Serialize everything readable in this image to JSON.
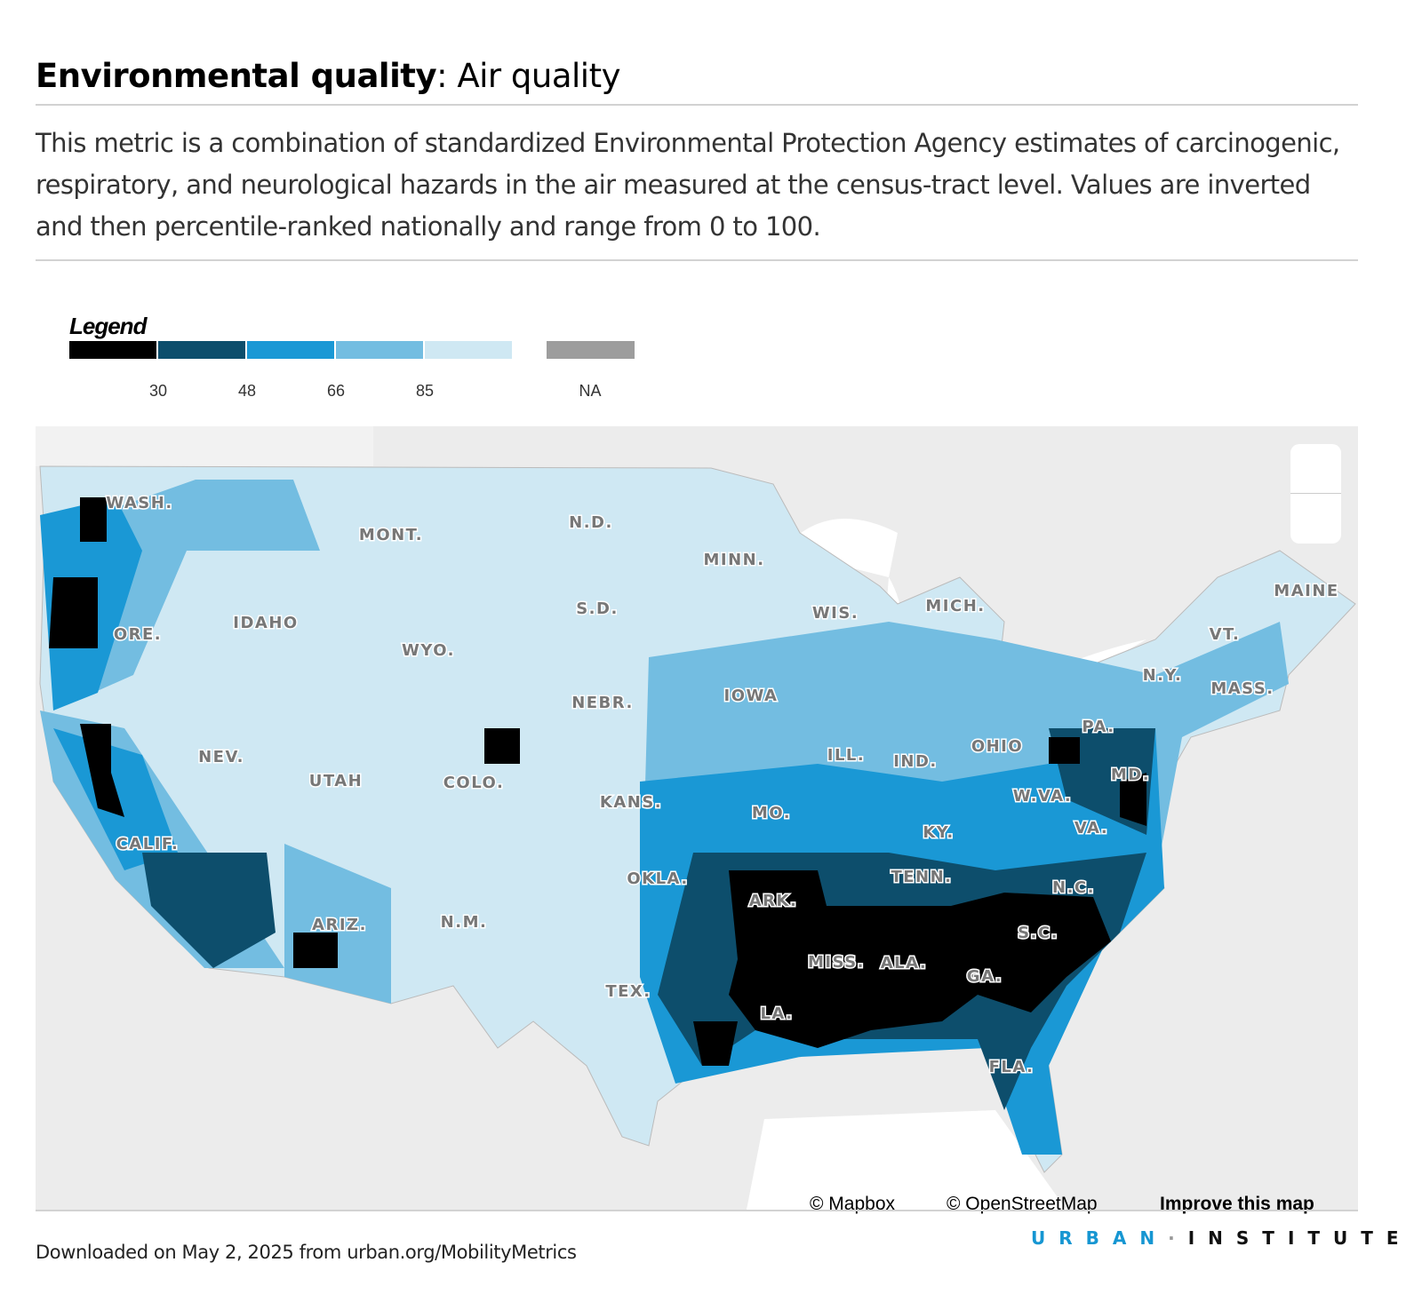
{
  "header": {
    "title_bold": "Environmental quality",
    "title_rest": ": Air quality",
    "description": "This metric is a combination of standardized Environmental Protection Agency estimates of carcinogenic, respiratory, and neurological hazards in the air measured at the census-tract level. Values are inverted and then percentile-ranked nationally and range from 0 to 100."
  },
  "legend": {
    "title": "Legend",
    "bins": [
      {
        "color": "#000000"
      },
      {
        "color": "#0d4e6c"
      },
      {
        "color": "#1a98d5"
      },
      {
        "color": "#73bde1"
      },
      {
        "color": "#cfe8f3"
      }
    ],
    "breaks": [
      "30",
      "48",
      "66",
      "85"
    ],
    "na_color": "#9d9d9d",
    "na_label": "NA"
  },
  "map": {
    "state_labels": [
      "WASH.",
      "MONT.",
      "N.D.",
      "MINN.",
      "WIS.",
      "MICH.",
      "MAINE",
      "VT.",
      "N.Y.",
      "MASS.",
      "PA.",
      "OHIO",
      "IND.",
      "ILL.",
      "IOWA",
      "S.D.",
      "NEBR.",
      "WYO.",
      "IDAHO",
      "ORE.",
      "NEV.",
      "UTAH",
      "COLO.",
      "KANS.",
      "MO.",
      "KY.",
      "W.VA.",
      "MD.",
      "VA.",
      "TENN.",
      "N.C.",
      "OKLA.",
      "ARK.",
      "S.C.",
      "CALIF.",
      "ARIZ.",
      "N.M.",
      "MISS.",
      "ALA.",
      "GA.",
      "TEX.",
      "LA.",
      "FLA."
    ],
    "controls": [
      "zoom-in",
      "zoom-out"
    ],
    "attribution": {
      "mapbox": "© Mapbox",
      "osm": "© OpenStreetMap",
      "improve": "Improve this map"
    }
  },
  "footer": {
    "download_note": "Downloaded on May 2, 2025 from urban.org/MobilityMetrics",
    "logo_urban": "URBAN",
    "logo_dot": "·",
    "logo_institute": "INSTITUTE"
  }
}
